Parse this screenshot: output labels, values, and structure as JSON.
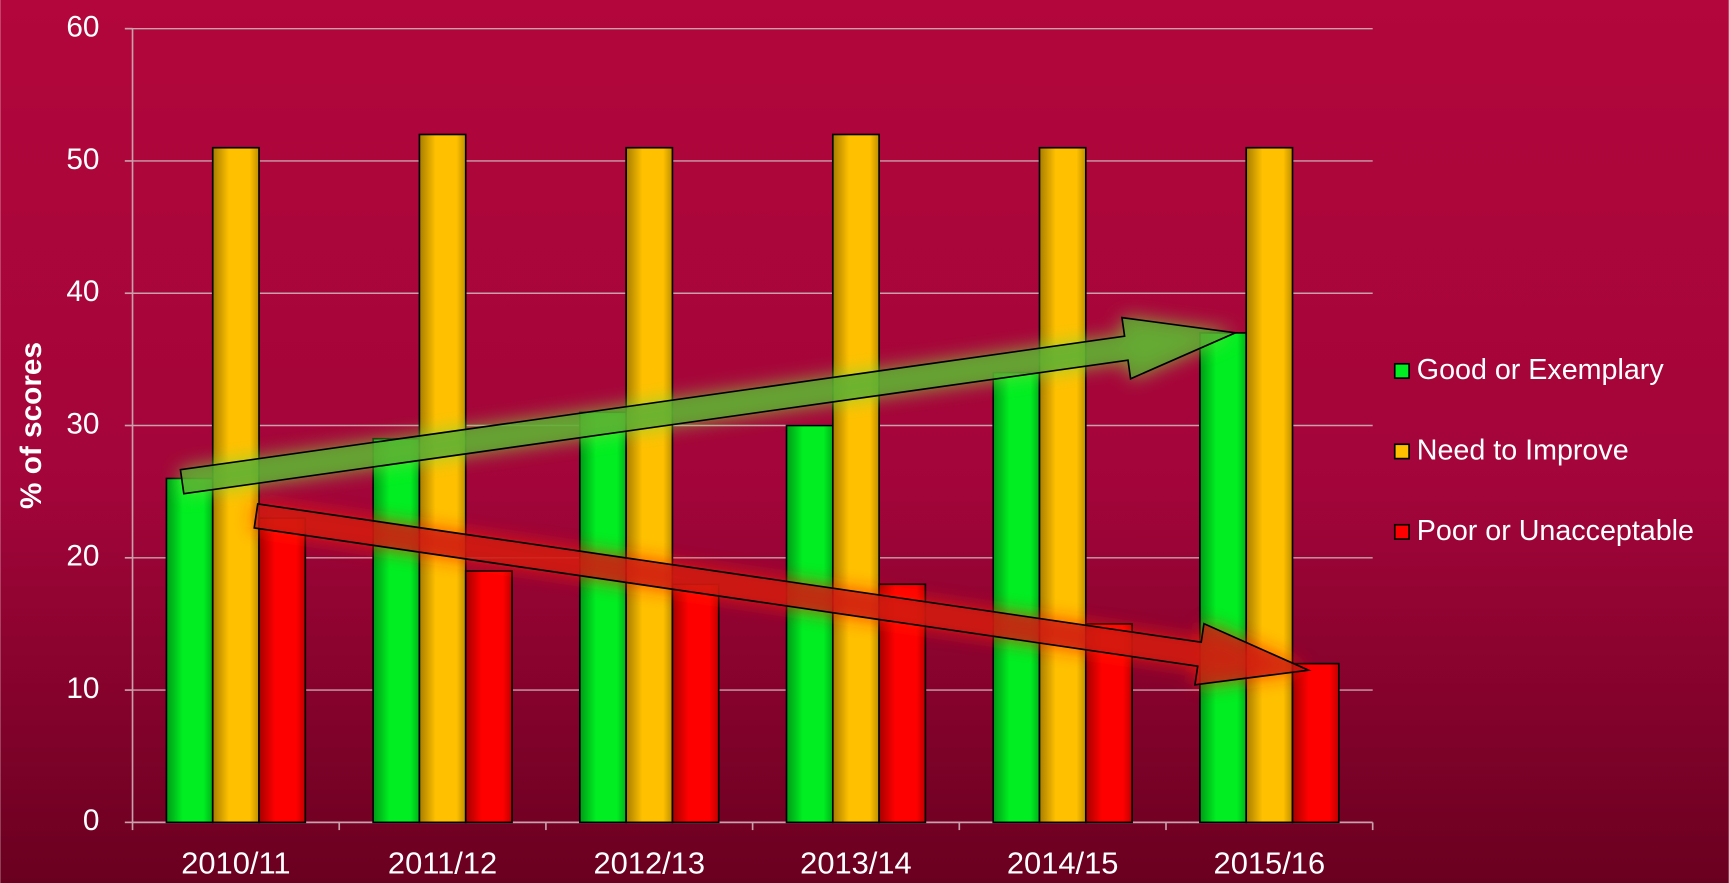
{
  "chart_data": {
    "type": "bar",
    "y_axis_label": "% of scores",
    "categories": [
      "2010/11",
      "2011/12",
      "2012/13",
      "2013/14",
      "2014/15",
      "2015/16"
    ],
    "series": [
      {
        "name": "Good or Exemplary",
        "color": "#00ee22",
        "values": [
          26,
          29,
          31,
          30,
          34,
          37
        ]
      },
      {
        "name": "Need to Improve",
        "color": "#ffc000",
        "values": [
          51,
          52,
          51,
          52,
          51,
          51
        ]
      },
      {
        "name": "Poor or Unacceptable",
        "color": "#ff0000",
        "values": [
          23,
          19,
          18,
          18,
          15,
          12
        ]
      }
    ],
    "ylim": [
      0,
      60
    ],
    "yticks": [
      0,
      10,
      20,
      30,
      40,
      50,
      60
    ],
    "grid": true,
    "legend": "right"
  }
}
